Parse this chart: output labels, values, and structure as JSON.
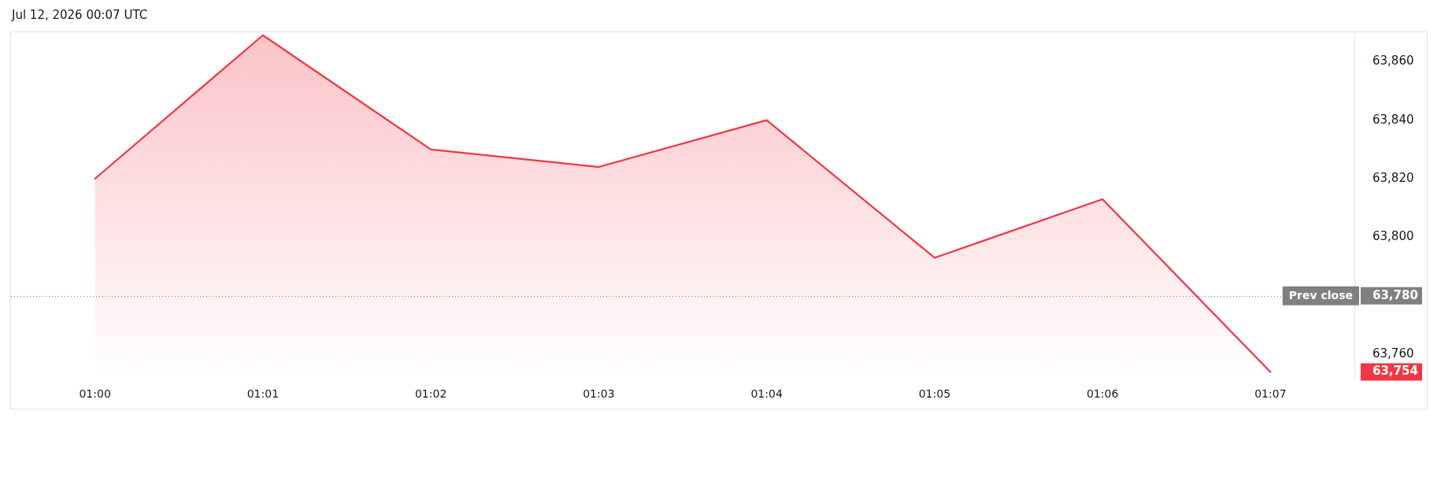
{
  "chart_data": {
    "type": "area",
    "title": "Jul 12, 2026 00:07 UTC",
    "categories": [
      "01:00",
      "01:01",
      "01:02",
      "01:03",
      "01:04",
      "01:05",
      "01:06",
      "01:07"
    ],
    "values": [
      63820,
      63869,
      63830,
      63824,
      63840,
      63793,
      63813,
      63754
    ],
    "color": "#f23645",
    "ylim": [
      63752,
      63870
    ],
    "yticks": [
      {
        "value": 63754,
        "label": "63,754"
      },
      {
        "value": 63760,
        "label": "63,760"
      },
      {
        "value": 63780,
        "label": "63,780"
      },
      {
        "value": 63800,
        "label": "63,800"
      },
      {
        "value": 63820,
        "label": "63,820"
      },
      {
        "value": 63840,
        "label": "63,840"
      },
      {
        "value": 63860,
        "label": "63,860"
      }
    ],
    "ref_lines": [
      {
        "axis": "y",
        "value": 63780,
        "label": "Prev close",
        "color": "#808080",
        "line_style": "dotted"
      }
    ],
    "grid": false,
    "marker": "none"
  }
}
